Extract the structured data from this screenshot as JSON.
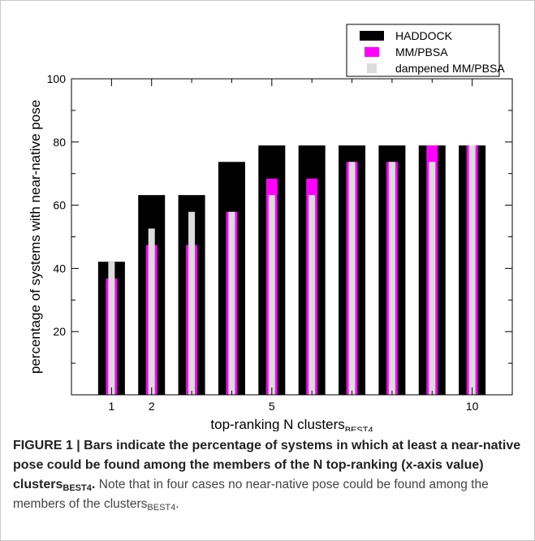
{
  "chart_data": {
    "type": "bar",
    "xlabel_main": "top-ranking N clusters",
    "xlabel_sub": "BEST4",
    "ylabel": "percentage of systems with near-native pose",
    "x_ticks": [
      "1",
      "2",
      "5",
      "10"
    ],
    "x_tick_positions": [
      1,
      2,
      5,
      10
    ],
    "y_ticks": [
      "20",
      "40",
      "60",
      "80",
      "100"
    ],
    "ylim": [
      0,
      100
    ],
    "xlim": [
      0,
      11
    ],
    "x": [
      1,
      2,
      3,
      4,
      5,
      6,
      7,
      8,
      9,
      10
    ],
    "legend_position": "top-right",
    "series": [
      {
        "name": "HADDOCK",
        "color": "#000000",
        "values": [
          42.1,
          63.2,
          63.2,
          73.7,
          78.9,
          78.9,
          78.9,
          78.9,
          78.9,
          78.9
        ]
      },
      {
        "name": "MM/PBSA",
        "color": "#ff00ff",
        "values": [
          36.8,
          47.4,
          47.4,
          57.9,
          68.4,
          68.4,
          73.7,
          73.7,
          78.9,
          78.9
        ]
      },
      {
        "name": "dampened MM/PBSA",
        "color": "#dcdcdc",
        "values": [
          42.1,
          52.6,
          57.9,
          57.9,
          63.2,
          63.2,
          73.7,
          73.7,
          73.7,
          78.9
        ]
      }
    ]
  },
  "caption": {
    "label": "FIGURE 1 | ",
    "bold_text": "Bars indicate the percentage of systems in which at least a near-native pose could be found among the members of the N top-ranking (x-axis value) clusters",
    "bold_sub": "BEST4",
    "bold_end": ".",
    "note_text": " Note that in four cases no near-native pose could be found among the members of the clusters",
    "note_sub": "BEST4",
    "note_end": "."
  }
}
